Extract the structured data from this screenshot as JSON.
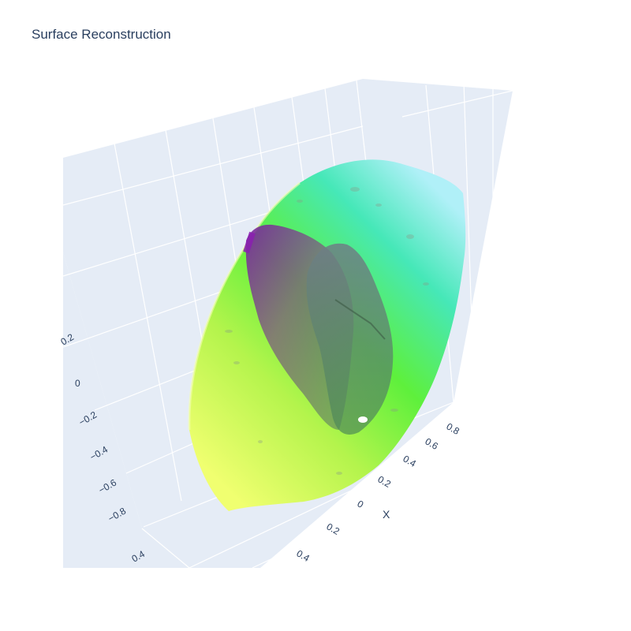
{
  "chart_data": {
    "type": "surface",
    "title": "Surface Reconstruction",
    "axes": {
      "x": {
        "title": "X",
        "ticks": [
          "0.8",
          "0.6",
          "0.4",
          "0.2",
          "0",
          "0.2",
          "0.4"
        ]
      },
      "y": {
        "title": "",
        "ticks": [
          "0.4"
        ]
      },
      "z": {
        "title": "",
        "ticks": [
          "0.2",
          "0",
          "−0.2",
          "−0.4",
          "−0.6",
          "−0.8"
        ]
      }
    },
    "scene": {
      "background": "#e5ecf6",
      "grid": true
    },
    "colorscale": [
      "#e8ff6a",
      "#a9f54a",
      "#52f046",
      "#48e8b4",
      "#a8eef6",
      "#7a1fa2"
    ]
  }
}
